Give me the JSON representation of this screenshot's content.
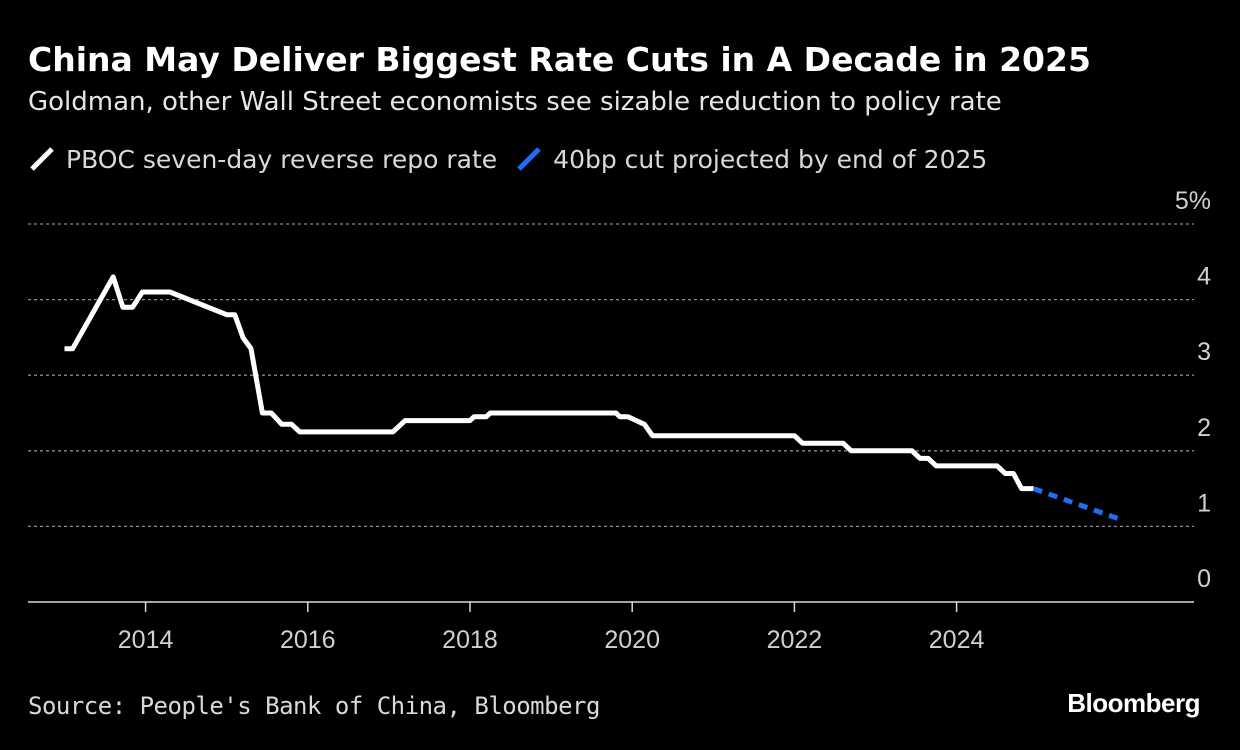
{
  "title": "China May Deliver Biggest Rate Cuts in A Decade in 2025",
  "subtitle": "Goldman, other Wall Street economists see sizable reduction to policy rate",
  "legend": [
    {
      "label": "PBOC seven-day reverse repo rate",
      "color": "#ffffff"
    },
    {
      "label": "40bp cut projected by end of 2025",
      "color": "#1f6ff2"
    }
  ],
  "source": "Source: People's Bank of China, Bloomberg",
  "brand": "Bloomberg",
  "chart_data": {
    "type": "line",
    "x_ticks": [
      "2014",
      "2016",
      "2018",
      "2020",
      "2022",
      "2024"
    ],
    "y_ticks": [
      "0",
      "1",
      "2",
      "3",
      "4",
      "5%"
    ],
    "ylim": [
      0,
      5
    ],
    "xlim": [
      2012.55,
      2027.0
    ],
    "grid": true,
    "legend_position": "top-left",
    "series": [
      {
        "name": "PBOC seven-day reverse repo rate",
        "color": "#ffffff",
        "style": "solid",
        "points": [
          [
            2013.0,
            3.35
          ],
          [
            2013.1,
            3.35
          ],
          [
            2013.6,
            4.3
          ],
          [
            2013.72,
            3.9
          ],
          [
            2013.84,
            3.9
          ],
          [
            2013.96,
            4.1
          ],
          [
            2014.05,
            4.1
          ],
          [
            2014.3,
            4.1
          ],
          [
            2015.0,
            3.8
          ],
          [
            2015.1,
            3.8
          ],
          [
            2015.2,
            3.5
          ],
          [
            2015.3,
            3.35
          ],
          [
            2015.44,
            2.5
          ],
          [
            2015.55,
            2.5
          ],
          [
            2015.68,
            2.35
          ],
          [
            2015.8,
            2.35
          ],
          [
            2015.9,
            2.25
          ],
          [
            2017.05,
            2.25
          ],
          [
            2017.2,
            2.4
          ],
          [
            2018.0,
            2.4
          ],
          [
            2018.05,
            2.45
          ],
          [
            2018.2,
            2.45
          ],
          [
            2018.25,
            2.5
          ],
          [
            2019.8,
            2.5
          ],
          [
            2019.85,
            2.45
          ],
          [
            2019.95,
            2.45
          ],
          [
            2020.15,
            2.35
          ],
          [
            2020.25,
            2.2
          ],
          [
            2022.0,
            2.2
          ],
          [
            2022.1,
            2.1
          ],
          [
            2022.6,
            2.1
          ],
          [
            2022.7,
            2.0
          ],
          [
            2023.45,
            2.0
          ],
          [
            2023.55,
            1.9
          ],
          [
            2023.65,
            1.9
          ],
          [
            2023.75,
            1.8
          ],
          [
            2024.5,
            1.8
          ],
          [
            2024.6,
            1.7
          ],
          [
            2024.7,
            1.7
          ],
          [
            2024.8,
            1.5
          ],
          [
            2024.95,
            1.5
          ]
        ]
      },
      {
        "name": "40bp cut projected by end of 2025",
        "color": "#1f6ff2",
        "style": "dashed",
        "points": [
          [
            2024.95,
            1.5
          ],
          [
            2026.0,
            1.1
          ]
        ]
      }
    ]
  }
}
